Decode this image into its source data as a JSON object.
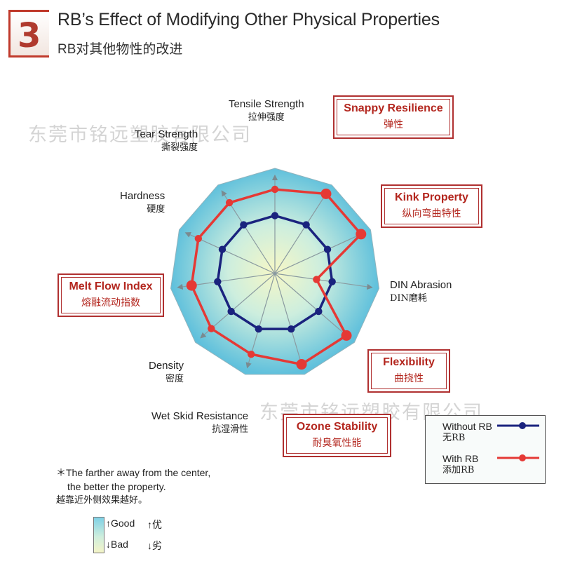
{
  "header": {
    "badge_number": "3",
    "title_en": "RB’s Effect of Modifying Other Physical Properties",
    "title_cn": "RB对其他物性的改进"
  },
  "watermarks": [
    "东莞市铭远塑胶有限公司",
    "东莞市铭远塑胶有限公司"
  ],
  "chart_data": {
    "type": "radar",
    "axes": [
      {
        "en": "Tensile Strength",
        "cn": "拉伸强度",
        "highlighted": false
      },
      {
        "en": "Snappy Resilience",
        "cn": "弹性",
        "highlighted": true
      },
      {
        "en": "Kink Property",
        "cn": "纵向弯曲特性",
        "highlighted": true
      },
      {
        "en": "DIN Abrasion",
        "cn": "DIN磨耗",
        "highlighted": false
      },
      {
        "en": "Flexibility",
        "cn": "曲挠性",
        "highlighted": true
      },
      {
        "en": "Ozone Stability",
        "cn": "耐臭氧性能",
        "highlighted": true
      },
      {
        "en": "Wet Skid Resistance",
        "cn": "抗湿滑性",
        "highlighted": false
      },
      {
        "en": "Density",
        "cn": "密度",
        "highlighted": false
      },
      {
        "en": "Melt Flow Index",
        "cn": "熔融流动指数",
        "highlighted": true
      },
      {
        "en": "Hardness",
        "cn": "硬度",
        "highlighted": false
      },
      {
        "en": "Tear Strength",
        "cn": "撕裂强度",
        "highlighted": false
      }
    ],
    "series": [
      {
        "name": "Without RB",
        "name_cn": "无RB",
        "color": "#1a237e",
        "values": [
          0.55,
          0.55,
          0.55,
          0.55,
          0.55,
          0.55,
          0.55,
          0.55,
          0.55,
          0.55,
          0.55
        ]
      },
      {
        "name": "With RB",
        "name_cn": "添加RB",
        "color": "#e53935",
        "values": [
          0.8,
          0.9,
          0.9,
          0.4,
          0.9,
          0.9,
          0.8,
          0.8,
          0.8,
          0.8,
          0.8
        ]
      }
    ],
    "rmax": 1.0,
    "highlight_color": "#b3261e",
    "fill_outer": "#5fc0dc",
    "fill_inner": "#f6f7c6",
    "legend_position": "bottom-right"
  },
  "note": {
    "line1": "＊The farther away from the center,",
    "line2": "the better the property.",
    "line3": "越靠近外侧效果越好。"
  },
  "scale": {
    "good_en": "↑Good",
    "good_cn": "↑优",
    "bad_en": "↓Bad",
    "bad_cn": "↓劣"
  }
}
